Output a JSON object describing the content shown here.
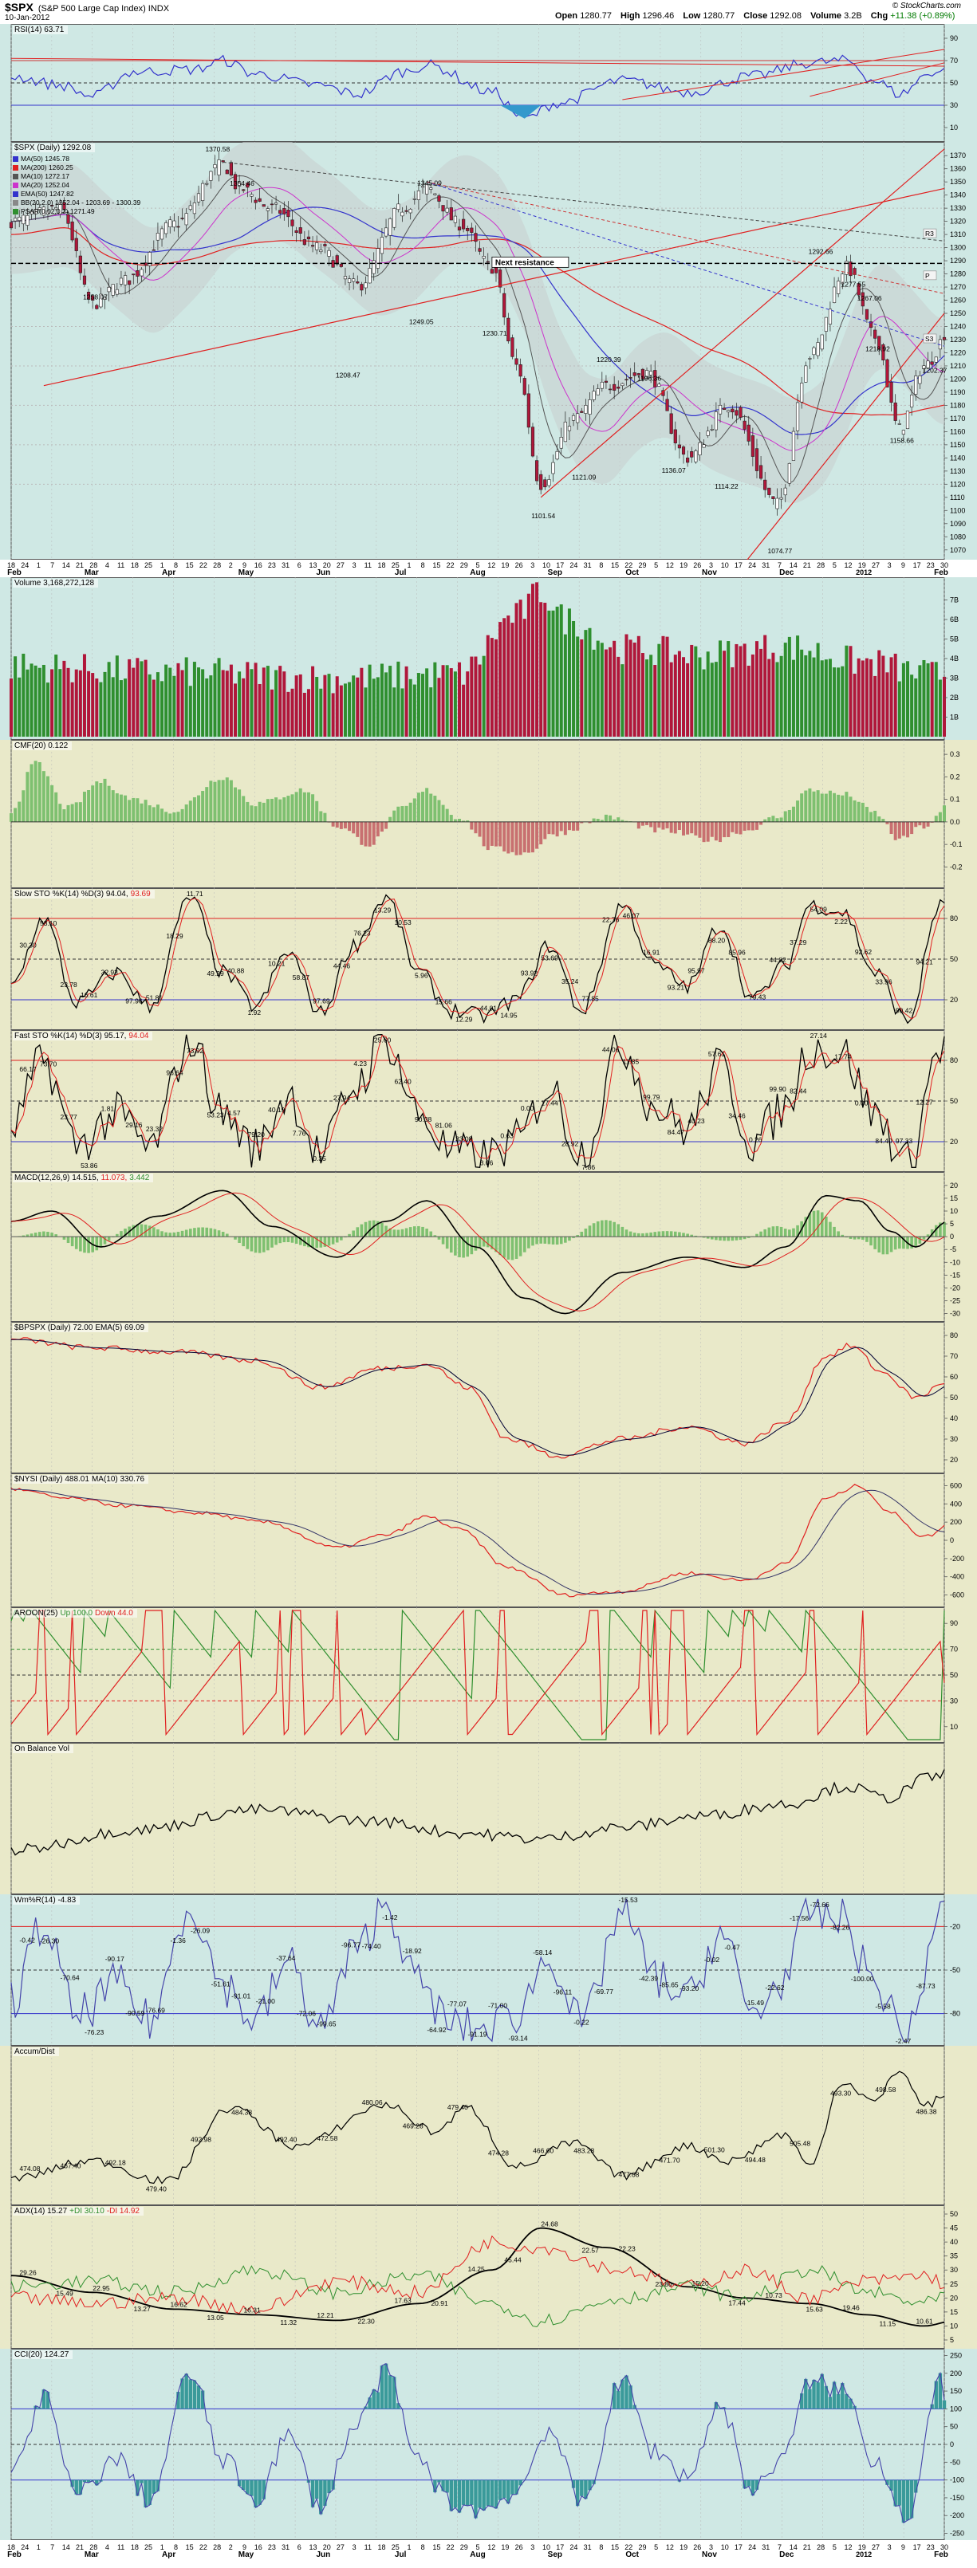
{
  "header": {
    "symbol": "$SPX",
    "name": "(S&P 500 Large Cap Index) INDX",
    "date": "10-Jan-2012",
    "open_label": "Open",
    "open": "1280.77",
    "high_label": "High",
    "high": "1296.46",
    "low_label": "Low",
    "low": "1280.77",
    "close_label": "Close",
    "close": "1292.08",
    "volume_label": "Volume",
    "volume": "3.2B",
    "chg_label": "Chg",
    "chg": "+11.38 (+0.89%)",
    "credit": "© StockCharts.com"
  },
  "colors": {
    "up": "#2f8f2f",
    "down": "#b0173a",
    "blue": "#3333cc",
    "red": "#e02020",
    "black": "#000000",
    "teal_bg": "#cfe8e4",
    "panel_bg": "#e9e9c9"
  },
  "x_axis": {
    "day_labels": [
      "18",
      "24",
      "1",
      "7",
      "14",
      "21",
      "28",
      "4",
      "11",
      "18",
      "25",
      "1",
      "8",
      "15",
      "22",
      "28",
      "2",
      "9",
      "16",
      "23",
      "31",
      "6",
      "13",
      "20",
      "27",
      "3",
      "11",
      "18",
      "25",
      "1",
      "8",
      "15",
      "22",
      "29",
      "5",
      "12",
      "19",
      "26",
      "3",
      "10",
      "17",
      "24",
      "31",
      "8",
      "15",
      "22",
      "29",
      "5",
      "12",
      "19",
      "26",
      "3",
      "10",
      "17",
      "24",
      "31",
      "7",
      "14",
      "21",
      "28",
      "5",
      "12",
      "19",
      "27",
      "3",
      "9",
      "17",
      "23",
      "30"
    ],
    "month_labels": [
      "Feb",
      "Mar",
      "Apr",
      "May",
      "Jun",
      "Jul",
      "Aug",
      "Sep",
      "Oct",
      "Nov",
      "Dec",
      "2012",
      "Feb"
    ]
  },
  "panels": {
    "rsi": {
      "label": "RSI(14) 63.71",
      "ticks": [
        "90",
        "70",
        "50",
        "30",
        "10"
      ]
    },
    "price": {
      "label": "$SPX (Daily) 1292.08",
      "legend": [
        {
          "text": "MA(50) 1245.78",
          "color": "#3333cc"
        },
        {
          "text": "MA(200) 1260.25",
          "color": "#e02020"
        },
        {
          "text": "MA(10) 1272.17",
          "color": "#555555"
        },
        {
          "text": "MA(20) 1252.04",
          "color": "#cc33cc"
        },
        {
          "text": "EMA(50) 1247.82",
          "color": "#3333cc"
        },
        {
          "text": "BB(20,2.0) 1252.04 - 1203.69 - 1300.39",
          "color": "#888888"
        },
        {
          "text": "PSAR(0.02,0.2) 1271.49",
          "color": "#2f8f2f"
        }
      ],
      "ticks": [
        "1370",
        "1360",
        "1350",
        "1340",
        "1330",
        "1320",
        "1310",
        "1300",
        "1290",
        "1280",
        "1270",
        "1260",
        "1250",
        "1240",
        "1230",
        "1220",
        "1210",
        "1200",
        "1190",
        "1180",
        "1170",
        "1160",
        "1150",
        "1140",
        "1130",
        "1120",
        "1110",
        "1100",
        "1090",
        "1080",
        "1070"
      ],
      "annotations": [
        "1370.58",
        "1354.46",
        "1345.09",
        "1249.05",
        "1258.07",
        "1208.47",
        "1230.71",
        "1220.39",
        "1196.36",
        "1101.54",
        "1121.09",
        "1136.07",
        "1114.22",
        "1074.77",
        "1292.66",
        "1277.55",
        "1218.92",
        "1267.06",
        "1202.37",
        "1158.66"
      ],
      "next_resistance": "Next resistance",
      "right_boxes": [
        "R3",
        "P",
        "S3"
      ]
    },
    "volume": {
      "label": "Volume 3,168,272,128",
      "ticks": [
        "7B",
        "6B",
        "5B",
        "4B",
        "3B",
        "2B",
        "1B"
      ]
    },
    "cmf": {
      "label": "CMF(20) 0.122",
      "ticks": [
        "0.3",
        "0.2",
        "0.1",
        "0.0",
        "-0.1",
        "-0.2"
      ]
    },
    "slowsto": {
      "label_a": "Slow STO %K(14) %D(3) 94.04,",
      "label_b": "93.69",
      "ticks": [
        "80",
        "50",
        "20"
      ],
      "annotations": [
        "30.30",
        "53.10",
        "23.78",
        "16.61",
        "32.93",
        "97.96",
        "51.81",
        "18.29",
        "11.71",
        "49.29",
        "40.88",
        "1.92",
        "10.21",
        "58.87",
        "97.69",
        "44.46",
        "76.23",
        "13.29",
        "10.53",
        "5.96",
        "15.66",
        "12.29",
        "44.01",
        "14.95",
        "93.92",
        "53.69",
        "35.24",
        "77.85",
        "22.76",
        "46.07",
        "16.91",
        "93.21",
        "95.97",
        "88.20",
        "85.96",
        "79.43",
        "44.82",
        "37.29",
        "54.09",
        "2.22",
        "92.62",
        "33.96",
        "90.42",
        "94.21"
      ]
    },
    "faststo": {
      "label_a": "Fast STO %K(14) %D(3) 95.17,",
      "label_b": "94.04",
      "ticks": [
        "80",
        "50",
        "20"
      ],
      "annotations": [
        "66.17",
        "73.70",
        "23.77",
        "53.86",
        "1.81",
        "29.16",
        "23.32",
        "96.64",
        "73.92",
        "53.23",
        "4.57",
        "79.20",
        "40.19",
        "7.76",
        "0.35",
        "27.94",
        "4.23",
        "25.60",
        "62.40",
        "90.38",
        "81.06",
        "33.08",
        "3.06",
        "0.63",
        "0.00",
        "17.44",
        "28.92",
        "7.86",
        "44.06",
        "11.85",
        "99.79",
        "84.47",
        "40.23",
        "57.61",
        "34.46",
        "0.26",
        "99.90",
        "82.44",
        "27.14",
        "17.74",
        "0.00",
        "84.40",
        "97.33",
        "12.27"
      ]
    },
    "macd": {
      "label_a": "MACD(12,26,9) 14.515,",
      "label_b": "11.073,",
      "label_c": "3.442",
      "ticks": [
        "20",
        "15",
        "10",
        "5",
        "0",
        "-5",
        "-10",
        "-15",
        "-20",
        "-25",
        "-30"
      ]
    },
    "bpspx": {
      "label_a": "$BPSPX (Daily) 72.00",
      "label_b": "EMA(5) 69.09",
      "ticks": [
        "80",
        "70",
        "60",
        "50",
        "40",
        "30",
        "20"
      ]
    },
    "nysi": {
      "label_a": "$NYSI (Daily) 488.01",
      "label_b": "MA(10) 330.76",
      "ticks": [
        "600",
        "400",
        "200",
        "0",
        "-200",
        "-400",
        "-600"
      ]
    },
    "aroon": {
      "label_a": "AROON(25)",
      "label_b": "Up 100.0",
      "label_c": "Down 44.0",
      "ticks": [
        "90",
        "70",
        "50",
        "30",
        "10"
      ]
    },
    "obv": {
      "label": "On Balance Vol"
    },
    "willr": {
      "label": "Wm%R(14) -4.83",
      "ticks": [
        "-20",
        "-50",
        "-80"
      ],
      "annotations": [
        "-0.42",
        "-26.30",
        "-70.64",
        "-76.23",
        "-90.17",
        "-90.59",
        "-76.69",
        "-1.36",
        "-26.09",
        "-51.61",
        "-91.01",
        "-21.00",
        "-37.64",
        "-72.06",
        "-99.65",
        "-96.77",
        "-74.40",
        "-1.42",
        "-18.92",
        "-64.92",
        "-77.07",
        "-91.19",
        "-71.00",
        "-93.14",
        "-58.14",
        "-96.11",
        "-0.22",
        "-69.77",
        "-15.53",
        "-42.39",
        "-85.65",
        "-93.20",
        "-0.02",
        "-0.47",
        "-15.49",
        "-22.62",
        "-17.56",
        "-72.66",
        "-82.26",
        "-100.00",
        "-5.58",
        "-2.47",
        "-87.73"
      ]
    },
    "accum": {
      "label": "Accum/Dist",
      "annotations": [
        "474.08",
        "467.40",
        "492.18",
        "479.40",
        "492.98",
        "484.38",
        "492.40",
        "472.58",
        "480.06",
        "469.28",
        "479.40",
        "474.28",
        "466.60",
        "483.28",
        "477.08",
        "471.70",
        "501.30",
        "494.48",
        "505.48",
        "493.30",
        "498.58",
        "486.38"
      ]
    },
    "adx": {
      "label_a": "ADX(14) 15.27",
      "label_b": "+DI 30.10",
      "label_c": "-DI 14.92",
      "ticks": [
        "50",
        "45",
        "40",
        "35",
        "30",
        "25",
        "20",
        "15",
        "10",
        "5"
      ],
      "annotations": [
        "29.26",
        "15.49",
        "22.95",
        "13.27",
        "16.62",
        "13.05",
        "16.31",
        "11.32",
        "12.21",
        "22.30",
        "17.63",
        "20.91",
        "14.25",
        "45.44",
        "24.68",
        "22.57",
        "22.23",
        "23.80",
        "15.20",
        "17.44",
        "10.73",
        "15.63",
        "19.46",
        "11.15",
        "10.61"
      ]
    },
    "cci": {
      "label": "CCI(20) 124.27",
      "ticks": [
        "250",
        "200",
        "150",
        "100",
        "50",
        "0",
        "-50",
        "-100",
        "-150",
        "-200",
        "-250"
      ]
    }
  }
}
